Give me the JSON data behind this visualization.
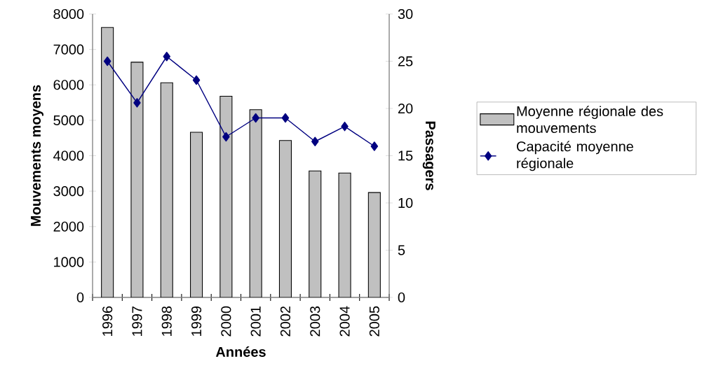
{
  "chart_data": {
    "type": "bar",
    "xlabel": "Années",
    "ylabel": "Mouvements moyens",
    "y2label": "Passagers",
    "categories": [
      "1996",
      "1997",
      "1998",
      "1999",
      "2000",
      "2001",
      "2002",
      "2003",
      "2004",
      "2005"
    ],
    "series": [
      {
        "name": "Moyenne régionale des mouvements",
        "color": "#c0c0c0",
        "values": [
          7620,
          6640,
          6060,
          4660,
          5680,
          5300,
          4430,
          3570,
          3510,
          2960
        ]
      },
      {
        "name": "Capacité moyenne régionale",
        "type": "line",
        "axis": "y2",
        "color": "#000080",
        "values": [
          25,
          20.6,
          25.5,
          23,
          17,
          19,
          19,
          16.5,
          18.1,
          16
        ]
      }
    ],
    "ylim": [
      0,
      8000
    ],
    "yticks": [
      0,
      1000,
      2000,
      3000,
      4000,
      5000,
      6000,
      7000,
      8000
    ],
    "y2lim": [
      0,
      30
    ],
    "y2ticks": [
      0,
      5,
      10,
      15,
      20,
      25,
      30
    ],
    "grid": false,
    "legend": "right",
    "marker": "diamond",
    "line_style": "solid"
  }
}
